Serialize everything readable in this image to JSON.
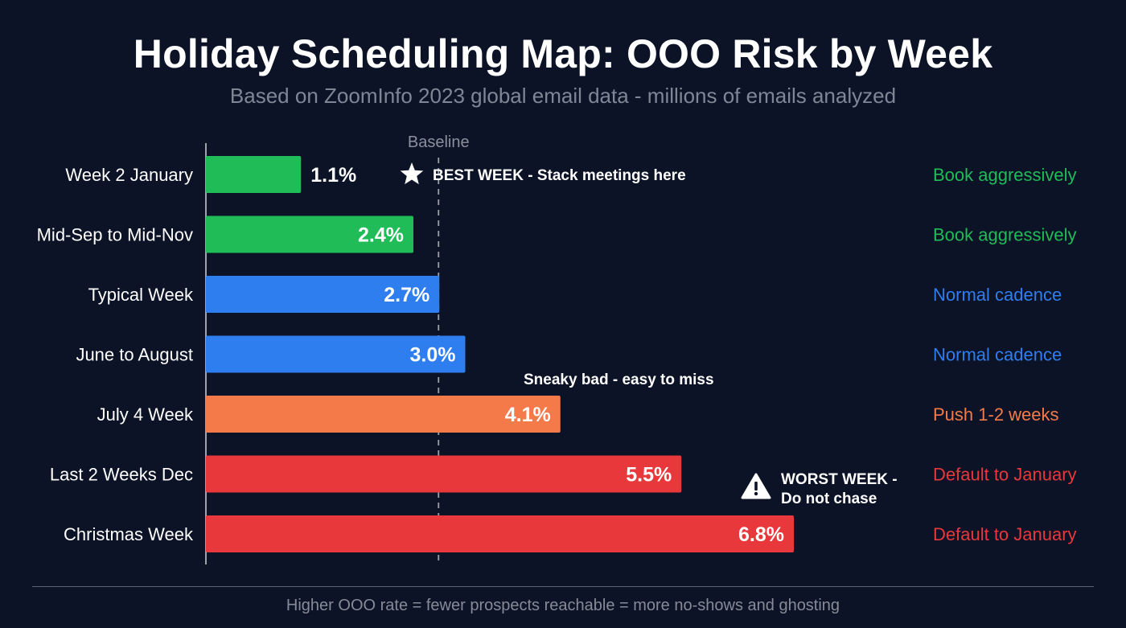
{
  "title": "Holiday Scheduling Map: OOO Risk by Week",
  "subtitle": "Based on ZoomInfo 2023 global email data - millions of emails analyzed",
  "footer": "Higher OOO rate = fewer prospects reachable = more no-shows and ghosting",
  "colors": {
    "green": "#1fbc58",
    "blue": "#2f7ef0",
    "orange": "#f47a4a",
    "red": "#e8383c",
    "background": "#0c1326"
  },
  "chart_data": {
    "type": "bar",
    "orientation": "horizontal",
    "title": "Holiday Scheduling Map: OOO Risk by Week",
    "subtitle": "Based on ZoomInfo 2023 global email data - millions of emails analyzed",
    "xlim": [
      0,
      7.5
    ],
    "baseline": {
      "label": "Baseline",
      "value": 2.7
    },
    "categories": [
      "Week 2 January",
      "Mid-Sep to Mid-Nov",
      "Typical Week",
      "June to August",
      "July 4 Week",
      "Last 2 Weeks Dec",
      "Christmas Week"
    ],
    "values": [
      1.1,
      2.4,
      2.7,
      3.0,
      4.1,
      5.5,
      6.8
    ],
    "value_labels": [
      "1.1%",
      "2.4%",
      "2.7%",
      "3.0%",
      "4.1%",
      "5.5%",
      "6.8%"
    ],
    "bar_colors": [
      "green",
      "green",
      "blue",
      "blue",
      "orange",
      "red",
      "red"
    ],
    "recommendations": [
      {
        "text": "Book aggressively",
        "color": "green"
      },
      {
        "text": "Book aggressively",
        "color": "green"
      },
      {
        "text": "Normal cadence",
        "color": "blue"
      },
      {
        "text": "Normal cadence",
        "color": "blue"
      },
      {
        "text": "Push 1-2 weeks",
        "color": "orange"
      },
      {
        "text": "Default to January",
        "color": "red"
      },
      {
        "text": "Default to January",
        "color": "red"
      }
    ],
    "annotations": [
      {
        "text": "BEST WEEK - Stack meetings here",
        "icon": "star-icon",
        "row": 0
      },
      {
        "text": "Sneaky bad - easy to miss",
        "row": 4
      },
      {
        "lines": [
          "WORST WEEK -",
          "Do not chase"
        ],
        "icon": "warning-icon",
        "row": 6
      }
    ]
  }
}
